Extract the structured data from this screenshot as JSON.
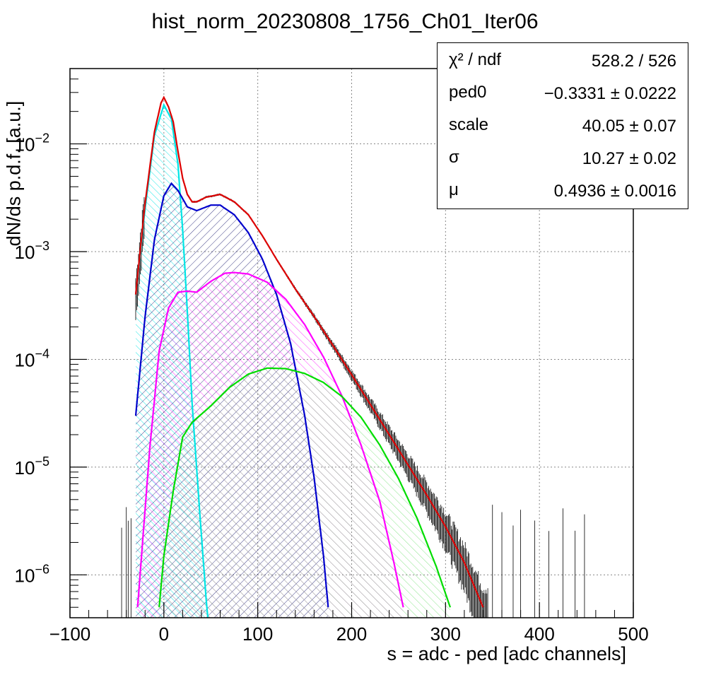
{
  "title": "hist_norm_20230808_1756_Ch01_Iter06",
  "stats": [
    {
      "key": "χ² / ndf",
      "value": "528.2 / 526"
    },
    {
      "key": "ped0",
      "value": "−0.3331 ± 0.0222"
    },
    {
      "key": "scale",
      "value": "40.05 ± 0.07"
    },
    {
      "key": "σ",
      "value": "10.27 ± 0.02"
    },
    {
      "key": "μ",
      "value": "0.4936 ± 0.0016"
    }
  ],
  "chart_data": {
    "type": "line",
    "title": "hist_norm_20230808_1756_Ch01_Iter06",
    "xlabel": "s = adc - ped [adc channels]",
    "ylabel": "dN/ds p.d.f. [a.u.]",
    "xlim": [
      -100,
      500
    ],
    "ylim": [
      4e-07,
      0.05
    ],
    "yscale": "log",
    "grid": true,
    "x_ticks": [
      "−100",
      "0",
      "100",
      "200",
      "300",
      "400",
      "500"
    ],
    "y_ticks": [
      {
        "base": "10",
        "exp": "−2",
        "value": 0.01
      },
      {
        "base": "10",
        "exp": "−3",
        "value": 0.001
      },
      {
        "base": "10",
        "exp": "−4",
        "value": 0.0001
      },
      {
        "base": "10",
        "exp": "−5",
        "value": 1e-05
      },
      {
        "base": "10",
        "exp": "−6",
        "value": 1e-06
      }
    ],
    "series": [
      {
        "color": "#00e5e5",
        "hatch": true,
        "points": [
          [
            -30,
            0.0004
          ],
          [
            -20,
            0.0025
          ],
          [
            -10,
            0.012
          ],
          [
            0,
            0.023
          ],
          [
            8,
            0.017
          ],
          [
            15,
            0.0065
          ],
          [
            20,
            0.0016
          ],
          [
            25,
            0.00028
          ],
          [
            30,
            4e-05
          ],
          [
            38,
            4e-06
          ],
          [
            45,
            6e-07
          ],
          [
            50,
            2e-07
          ]
        ]
      },
      {
        "color": "#0000cc",
        "hatch": true,
        "points": [
          [
            -30,
            3e-05
          ],
          [
            -20,
            0.00025
          ],
          [
            -10,
            0.0013
          ],
          [
            0,
            0.0033
          ],
          [
            8,
            0.0043
          ],
          [
            15,
            0.0037
          ],
          [
            25,
            0.0026
          ],
          [
            35,
            0.0024
          ],
          [
            50,
            0.0027
          ],
          [
            60,
            0.0027
          ],
          [
            75,
            0.0022
          ],
          [
            90,
            0.0015
          ],
          [
            105,
            0.00085
          ],
          [
            120,
            0.0004
          ],
          [
            135,
            0.00014
          ],
          [
            150,
            3e-05
          ],
          [
            160,
            8e-06
          ],
          [
            170,
            1.5e-06
          ],
          [
            175,
            5e-07
          ]
        ]
      },
      {
        "color": "#ff00ff",
        "hatch": true,
        "points": [
          [
            -28,
            5e-07
          ],
          [
            -15,
            1.5e-05
          ],
          [
            -5,
            0.00012
          ],
          [
            5,
            0.0003
          ],
          [
            15,
            0.00042
          ],
          [
            25,
            0.00043
          ],
          [
            35,
            0.00042
          ],
          [
            50,
            0.00053
          ],
          [
            65,
            0.00063
          ],
          [
            75,
            0.00064
          ],
          [
            90,
            0.00062
          ],
          [
            110,
            0.00052
          ],
          [
            130,
            0.00036
          ],
          [
            150,
            0.00021
          ],
          [
            170,
            0.000105
          ],
          [
            190,
            4.5e-05
          ],
          [
            210,
            1.6e-05
          ],
          [
            230,
            4.8e-06
          ],
          [
            245,
            1.3e-06
          ],
          [
            255,
            5e-07
          ]
        ]
      },
      {
        "color": "#00dd00",
        "hatch": true,
        "points": [
          [
            -5,
            5e-07
          ],
          [
            0,
            1.5e-06
          ],
          [
            10,
            6e-06
          ],
          [
            20,
            1.9e-05
          ],
          [
            30,
            2.6e-05
          ],
          [
            40,
            3.1e-05
          ],
          [
            50,
            3.7e-05
          ],
          [
            70,
            5.5e-05
          ],
          [
            90,
            7.3e-05
          ],
          [
            110,
            8.3e-05
          ],
          [
            130,
            8.2e-05
          ],
          [
            150,
            7.4e-05
          ],
          [
            170,
            6.1e-05
          ],
          [
            190,
            4.5e-05
          ],
          [
            210,
            2.9e-05
          ],
          [
            230,
            1.6e-05
          ],
          [
            250,
            7.8e-06
          ],
          [
            270,
            3.3e-06
          ],
          [
            290,
            1.2e-06
          ],
          [
            305,
            5e-07
          ]
        ]
      },
      {
        "color": "#dd0000",
        "hatch": false,
        "points": [
          [
            -30,
            0.0004
          ],
          [
            -20,
            0.0028
          ],
          [
            -10,
            0.013
          ],
          [
            -3,
            0.024
          ],
          [
            0,
            0.027
          ],
          [
            5,
            0.022
          ],
          [
            10,
            0.016
          ],
          [
            15,
            0.0085
          ],
          [
            20,
            0.0048
          ],
          [
            25,
            0.0034
          ],
          [
            30,
            0.0029
          ],
          [
            35,
            0.0029
          ],
          [
            45,
            0.0032
          ],
          [
            60,
            0.0034
          ],
          [
            75,
            0.0029
          ],
          [
            90,
            0.0022
          ],
          [
            105,
            0.0014
          ],
          [
            120,
            0.00085
          ],
          [
            140,
            0.00045
          ],
          [
            160,
            0.00025
          ],
          [
            180,
            0.000135
          ],
          [
            200,
            7.2e-05
          ],
          [
            220,
            3.8e-05
          ],
          [
            240,
            2e-05
          ],
          [
            260,
            1.05e-05
          ],
          [
            280,
            5.5e-06
          ],
          [
            300,
            2.8e-06
          ],
          [
            320,
            1.3e-06
          ],
          [
            340,
            5e-07
          ]
        ]
      }
    ],
    "data_points_note": "histogram with error bars (black) follows the red total curve"
  }
}
